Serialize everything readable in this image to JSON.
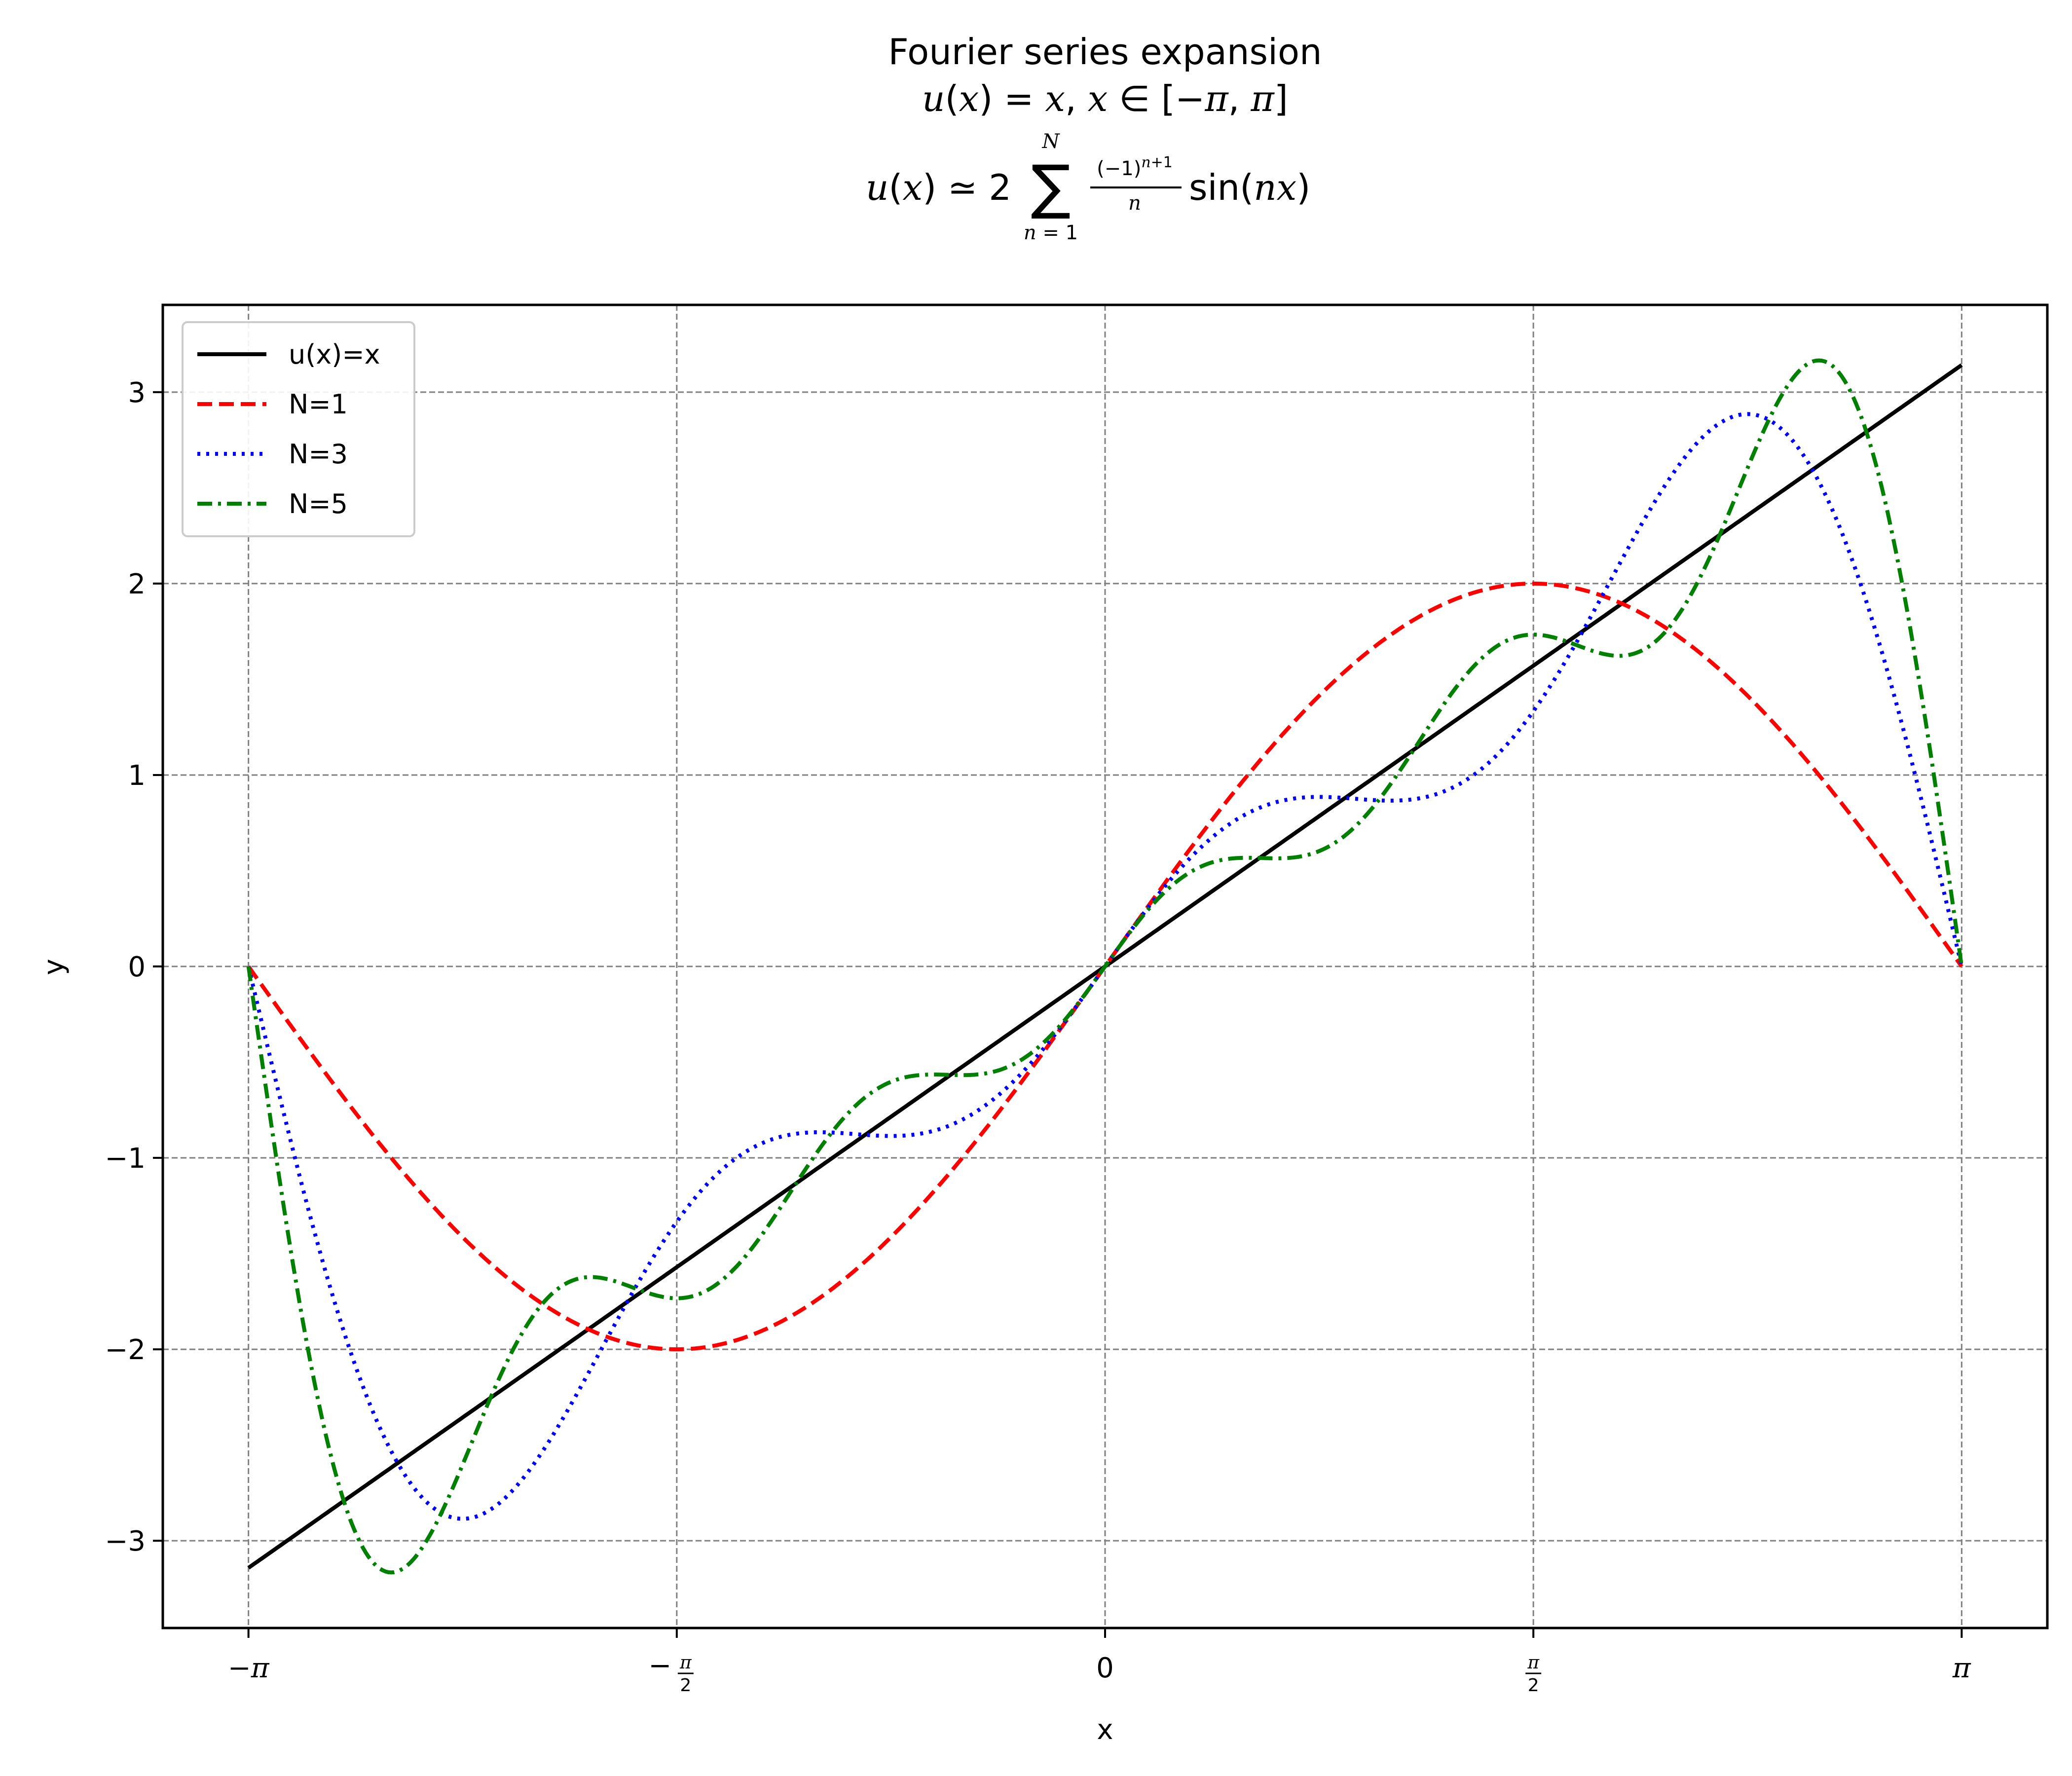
{
  "chart_data": {
    "type": "line",
    "title_lines": [
      "Fourier series expansion",
      "u(x) = x, x ∈ [−π, π]",
      "u(x) ≃ 2 Σ (−1)ⁿ⁺¹/n sin(nx), n = 1 … N"
    ],
    "xlabel": "x",
    "ylabel": "y",
    "xlim": [
      -3.4558,
      3.4558
    ],
    "ylim": [
      -3.4558,
      3.4558
    ],
    "xticks": [
      {
        "value": -3.14159265,
        "label": "−π"
      },
      {
        "value": -1.57079633,
        "label": "−π/2"
      },
      {
        "value": 0,
        "label": "0"
      },
      {
        "value": 1.57079633,
        "label": "π/2"
      },
      {
        "value": 3.14159265,
        "label": "π"
      }
    ],
    "yticks": [
      {
        "value": -3,
        "label": "−3"
      },
      {
        "value": -2,
        "label": "−2"
      },
      {
        "value": -1,
        "label": "−1"
      },
      {
        "value": 0,
        "label": "0"
      },
      {
        "value": 1,
        "label": "1"
      },
      {
        "value": 2,
        "label": "2"
      },
      {
        "value": 3,
        "label": "3"
      }
    ],
    "grid": true,
    "grid_style": "dashed",
    "legend_position": "top-left",
    "x_domain": [
      -3.14159265,
      3.14159265
    ],
    "series": [
      {
        "name": "u(x)=x",
        "kind": "identity",
        "color": "#000000",
        "dash": "solid"
      },
      {
        "name": "N=1",
        "kind": "fourier",
        "N": 1,
        "color": "#ff0000",
        "dash": "dashed"
      },
      {
        "name": "N=3",
        "kind": "fourier",
        "N": 3,
        "color": "#0000ff",
        "dash": "dotted"
      },
      {
        "name": "N=5",
        "kind": "fourier",
        "N": 5,
        "color": "#008000",
        "dash": "dashdot"
      }
    ]
  }
}
